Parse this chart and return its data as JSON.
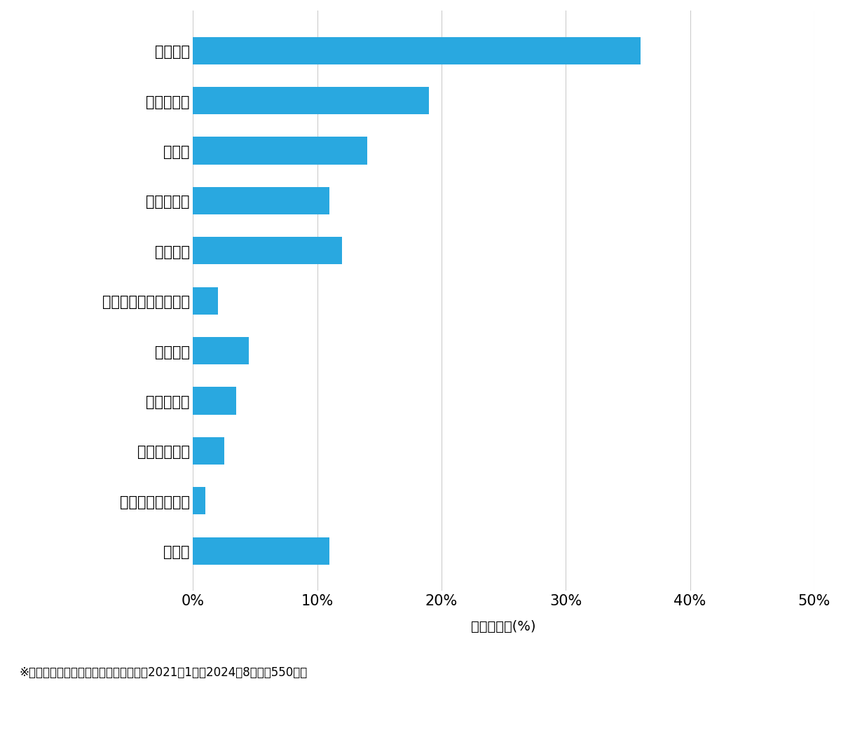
{
  "categories": [
    "その他",
    "スーツケース開鎖",
    "その他鍵作成",
    "玩関鍵作成",
    "金庫開鎖",
    "イモビ付国産車鍵作成",
    "車鍵作成",
    "その他開鎖",
    "車開鎖",
    "玩関鍵交換",
    "玩関開鎖"
  ],
  "values": [
    11.0,
    1.0,
    2.5,
    3.5,
    4.5,
    2.0,
    12.0,
    11.0,
    14.0,
    19.0,
    36.0
  ],
  "bar_color": "#29a8e0",
  "xlim": [
    0,
    50
  ],
  "xtick_values": [
    0,
    10,
    20,
    30,
    40,
    50
  ],
  "xlabel": "件数の割合(%)",
  "footnote": "※弊社受付の案件を対象に集計（期間：2021年1月～2024年8月、計550件）",
  "background_color": "#ffffff",
  "grid_color": "#cccccc",
  "bar_height": 0.55,
  "figsize": [
    12.0,
    10.69
  ],
  "dpi": 100,
  "label_fontsize": 15,
  "tick_fontsize": 15,
  "xlabel_fontsize": 14,
  "footnote_fontsize": 12
}
